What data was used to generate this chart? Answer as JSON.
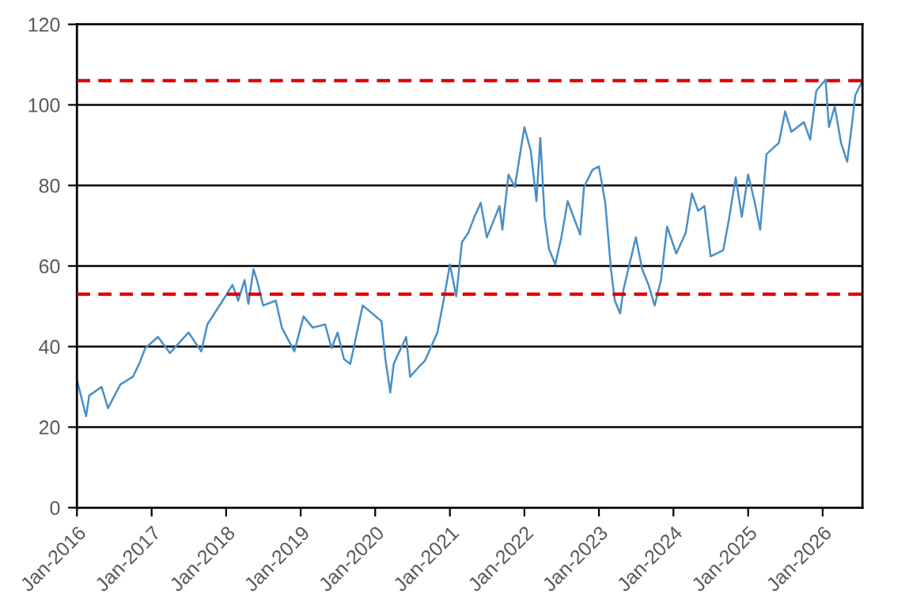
{
  "chart_data": {
    "type": "line",
    "x": [
      "2016-01-01",
      "2016-02-15",
      "2016-03-01",
      "2016-05-01",
      "2016-06-01",
      "2016-08-01",
      "2016-10-01",
      "2016-11-01",
      "2016-12-01",
      "2017-02-01",
      "2017-04-01",
      "2017-07-01",
      "2017-09-01",
      "2017-10-01",
      "2017-12-15",
      "2018-02-01",
      "2018-03-01",
      "2018-04-01",
      "2018-04-20",
      "2018-05-15",
      "2018-06-01",
      "2018-07-01",
      "2018-09-01",
      "2018-10-01",
      "2018-12-01",
      "2019-01-15",
      "2019-03-01",
      "2019-05-01",
      "2019-06-01",
      "2019-07-01",
      "2019-08-01",
      "2019-09-01",
      "2019-11-01",
      "2020-02-01",
      "2020-02-20",
      "2020-03-15",
      "2020-04-01",
      "2020-06-01",
      "2020-06-20",
      "2020-08-01",
      "2020-09-01",
      "2020-11-01",
      "2020-12-01",
      "2021-01-01",
      "2021-02-01",
      "2021-03-01",
      "2021-04-01",
      "2021-05-01",
      "2021-06-01",
      "2021-07-01",
      "2021-09-01",
      "2021-09-15",
      "2021-10-15",
      "2021-11-15",
      "2022-01-01",
      "2022-02-01",
      "2022-03-01",
      "2022-03-20",
      "2022-04-10",
      "2022-05-01",
      "2022-06-01",
      "2022-07-01",
      "2022-08-01",
      "2022-10-01",
      "2022-10-20",
      "2022-12-01",
      "2023-01-01",
      "2023-02-01",
      "2023-03-01",
      "2023-03-20",
      "2023-04-15",
      "2023-05-01",
      "2023-07-01",
      "2023-08-01",
      "2023-09-01",
      "2023-10-01",
      "2023-11-01",
      "2023-12-01",
      "2024-01-15",
      "2024-03-01",
      "2024-04-01",
      "2024-05-01",
      "2024-06-01",
      "2024-07-01",
      "2024-09-01",
      "2024-10-01",
      "2024-11-01",
      "2024-12-01",
      "2025-01-01",
      "2025-02-01",
      "2025-03-01",
      "2025-04-01",
      "2025-06-01",
      "2025-07-01",
      "2025-08-01",
      "2025-10-01",
      "2025-11-01",
      "2025-12-01",
      "2026-01-15",
      "2026-02-01",
      "2026-03-01",
      "2026-04-01",
      "2026-05-01",
      "2026-05-20",
      "2026-06-10",
      "2026-07-10"
    ],
    "series": [
      {
        "color": "#4a8fc6",
        "values": [
          31.8,
          22.7,
          27.8,
          30,
          24.7,
          30.6,
          32.5,
          35.7,
          39.6,
          42.4,
          38.4,
          43.5,
          38.8,
          45.5,
          51.4,
          55.3,
          51.4,
          56.5,
          50.6,
          59.2,
          56.5,
          50.2,
          51.4,
          44.7,
          38.8,
          47.5,
          44.7,
          45.5,
          39.6,
          43.5,
          36.9,
          35.7,
          50.2,
          46.3,
          36.9,
          28.6,
          35.7,
          42.4,
          32.5,
          34.9,
          36.5,
          43.5,
          51.4,
          60.4,
          52.5,
          65.9,
          68.2,
          72.2,
          75.7,
          67.1,
          74.9,
          69,
          82.7,
          79.6,
          94.5,
          88.6,
          76.1,
          91.8,
          72.2,
          64.3,
          60.4,
          67.1,
          76.1,
          67.8,
          79.6,
          83.9,
          84.7,
          75.7,
          59.2,
          51.4,
          48.2,
          54.1,
          67.1,
          59.2,
          55.3,
          50.2,
          56.5,
          69.8,
          63.1,
          68.2,
          78,
          73.7,
          74.9,
          62.4,
          63.9,
          72.2,
          82,
          72.2,
          82.7,
          76.1,
          69,
          87.8,
          90.6,
          98.4,
          93.3,
          95.7,
          91.4,
          103.5,
          106.3,
          94.5,
          99.6,
          90.6,
          85.9,
          93.3,
          102.4,
          105.5
        ]
      }
    ],
    "xlim": [
      "2016-01-01",
      "2026-07-15"
    ],
    "xticks": [
      {
        "value": "2016-01-01",
        "label": "Jan-2016"
      },
      {
        "value": "2017-01-01",
        "label": "Jan-2017"
      },
      {
        "value": "2018-01-01",
        "label": "Jan-2018"
      },
      {
        "value": "2019-01-01",
        "label": "Jan-2019"
      },
      {
        "value": "2020-01-01",
        "label": "Jan-2020"
      },
      {
        "value": "2021-01-01",
        "label": "Jan-2021"
      },
      {
        "value": "2022-01-01",
        "label": "Jan-2022"
      },
      {
        "value": "2023-01-01",
        "label": "Jan-2023"
      },
      {
        "value": "2024-01-01",
        "label": "Jan-2024"
      },
      {
        "value": "2025-01-01",
        "label": "Jan-2025"
      },
      {
        "value": "2026-01-01",
        "label": "Jan-2026"
      }
    ],
    "ylim": [
      0,
      120
    ],
    "yticks": [
      0,
      20,
      40,
      60,
      80,
      100,
      120
    ],
    "grid": "y",
    "ref_lines": [
      {
        "axis": "y",
        "value": 106,
        "color": "#e00000",
        "line_style": "dashed"
      },
      {
        "axis": "y",
        "value": 53,
        "color": "#e00000",
        "line_style": "dashed"
      }
    ]
  }
}
